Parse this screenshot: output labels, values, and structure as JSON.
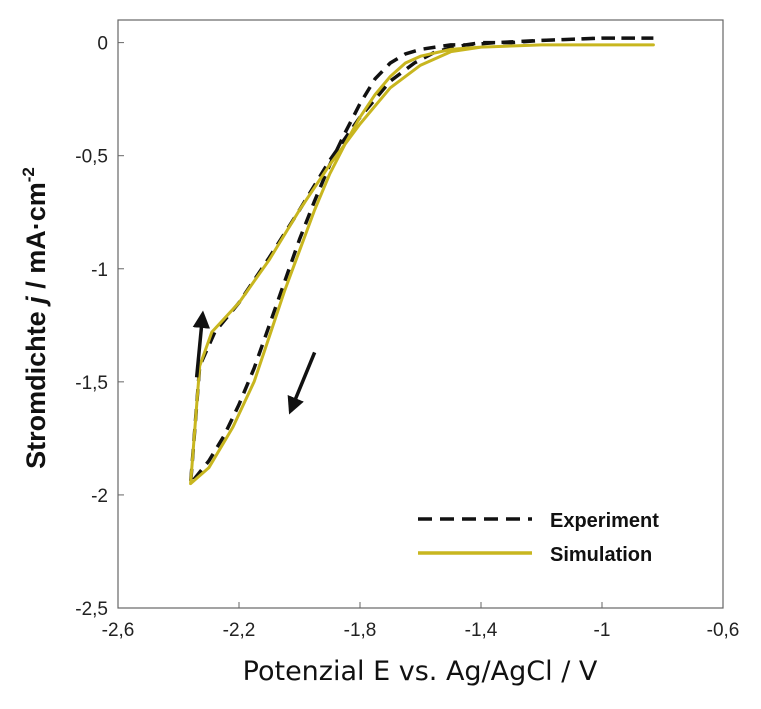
{
  "chart_data": {
    "type": "line",
    "xlabel": "Potenzial E vs. Ag/AgCl / V",
    "ylabel": {
      "prefix": "Stromdichte ",
      "italic": "j",
      "middle": " / mA·cm",
      "sup": "-2"
    },
    "xlim": [
      -2.6,
      -0.6
    ],
    "ylim": [
      -2.5,
      0.1
    ],
    "x_ticks": [
      -2.6,
      -2.2,
      -1.8,
      -1.4,
      -1.0,
      -0.6
    ],
    "x_tick_labels": [
      "-2,6",
      "-2,2",
      "-1,8",
      "-1,4",
      "-1",
      "-0,6"
    ],
    "y_ticks": [
      0,
      -0.5,
      -1.0,
      -1.5,
      -2.0,
      -2.5
    ],
    "y_tick_labels": [
      "0",
      "-0,5",
      "-1",
      "-1,5",
      "-2",
      "-2,5"
    ],
    "legend_position": "bottom-right",
    "grid": false,
    "series": [
      {
        "name": "Experiment",
        "style": "dashed",
        "color": "#111111",
        "x": [
          -0.83,
          -1.0,
          -1.2,
          -1.35,
          -1.45,
          -1.55,
          -1.62,
          -1.7,
          -1.8,
          -1.9,
          -2.0,
          -2.1,
          -2.2,
          -2.28,
          -2.33,
          -2.36,
          -2.3,
          -2.25,
          -2.2,
          -2.15,
          -2.1,
          -2.05,
          -2.0,
          -1.95,
          -1.9,
          -1.85,
          -1.8,
          -1.75,
          -1.7,
          -1.65,
          -1.6,
          -1.55,
          -1.5,
          -1.45,
          -1.4,
          -1.3,
          -1.2,
          -1.0,
          -0.83
        ],
        "y": [
          0.02,
          0.02,
          0.01,
          0.0,
          -0.01,
          -0.04,
          -0.09,
          -0.17,
          -0.33,
          -0.52,
          -0.74,
          -0.95,
          -1.15,
          -1.28,
          -1.43,
          -1.95,
          -1.85,
          -1.74,
          -1.6,
          -1.44,
          -1.25,
          -1.06,
          -0.87,
          -0.7,
          -0.54,
          -0.4,
          -0.27,
          -0.16,
          -0.09,
          -0.05,
          -0.03,
          -0.02,
          -0.01,
          -0.01,
          0.0,
          0.0,
          0.01,
          0.02,
          0.02
        ]
      },
      {
        "name": "Simulation",
        "style": "solid",
        "color": "#C8B61F",
        "x": [
          -0.83,
          -1.0,
          -1.2,
          -1.4,
          -1.5,
          -1.6,
          -1.7,
          -1.8,
          -1.9,
          -2.0,
          -2.1,
          -2.2,
          -2.29,
          -2.33,
          -2.36,
          -2.3,
          -2.22,
          -2.15,
          -2.1,
          -2.05,
          -2.0,
          -1.95,
          -1.9,
          -1.85,
          -1.8,
          -1.75,
          -1.7,
          -1.65,
          -1.6,
          -1.5,
          -1.4,
          -1.2,
          -1.0,
          -0.83
        ],
        "y": [
          -0.01,
          -0.01,
          -0.01,
          -0.02,
          -0.04,
          -0.1,
          -0.2,
          -0.36,
          -0.54,
          -0.74,
          -0.96,
          -1.15,
          -1.28,
          -1.43,
          -1.95,
          -1.88,
          -1.7,
          -1.5,
          -1.3,
          -1.1,
          -0.92,
          -0.74,
          -0.58,
          -0.45,
          -0.33,
          -0.23,
          -0.15,
          -0.09,
          -0.06,
          -0.03,
          -0.02,
          -0.01,
          -0.01,
          -0.01
        ]
      }
    ],
    "annotations": [
      {
        "type": "arrow",
        "direction": "up",
        "x_from": -2.34,
        "y_from": -1.48,
        "x_to": -2.32,
        "y_to": -1.2
      },
      {
        "type": "arrow",
        "direction": "down-left",
        "x_from": -1.95,
        "y_from": -1.37,
        "x_to": -2.03,
        "y_to": -1.63
      }
    ]
  }
}
